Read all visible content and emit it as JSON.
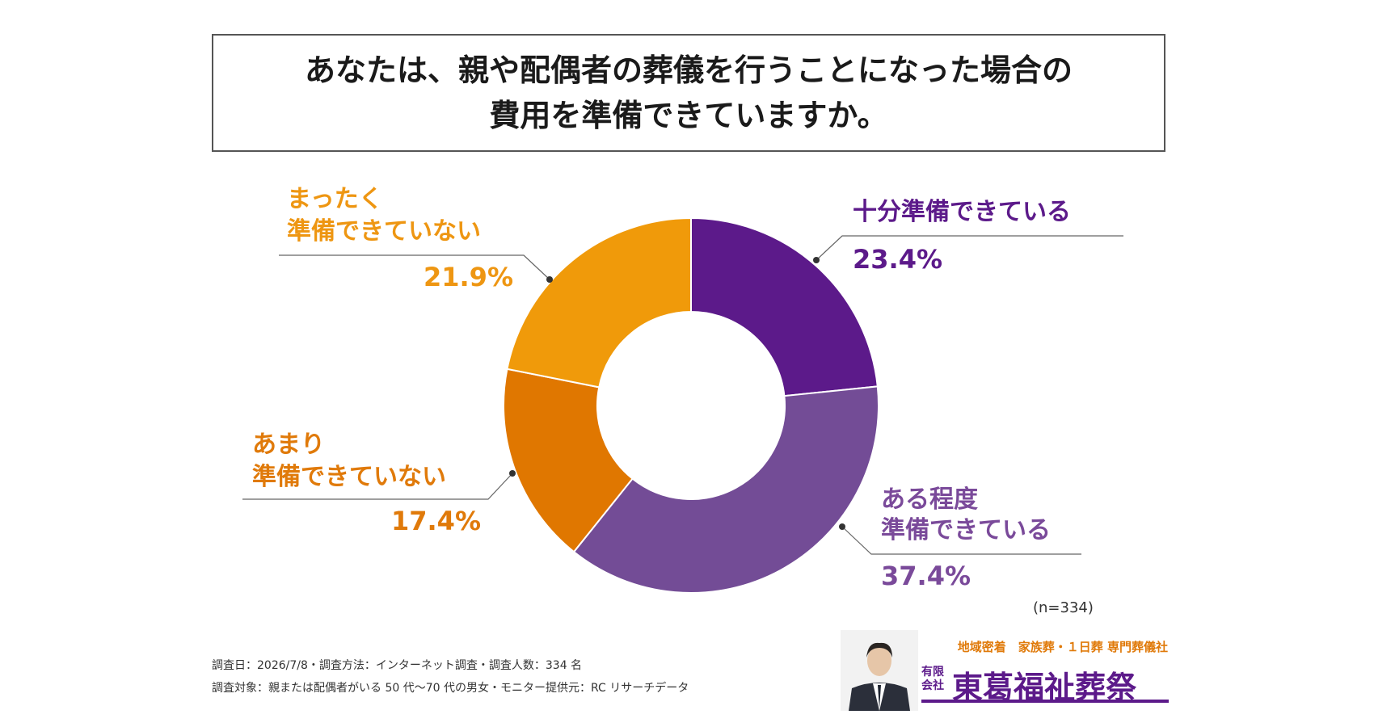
{
  "title": {
    "line1": "あなたは、親や配偶者の葬儀を行うことになった場合の",
    "line2": "費用を準備できていますか。"
  },
  "labels": {
    "enough_line1": "十分準備できている",
    "somewhat_line1": "ある程度",
    "somewhat_line2": "準備できている",
    "little_line1": "あまり",
    "little_line2": "準備できていない",
    "none_line1": "まったく",
    "none_line2": "準備できていない"
  },
  "sample_size": "(n=334)",
  "notes": {
    "line1": "調査日：2026/7/8・調査方法：インターネット調査・調査人数：334 名",
    "line2": "調査対象：親または配偶者がいる 50 代〜70 代の男女・モニター提供元：RC リサーチデータ"
  },
  "brand": {
    "tagline": "地域密着　家族葬・１日葬 専門葬儀社",
    "company_type": "有限会社",
    "company_name": "東葛福祉葬祭"
  },
  "colors": {
    "purple_dark": "#5c1a8a",
    "purple_mid": "#734c96",
    "orange_dark": "#e07700",
    "orange_light": "#f09a0a"
  },
  "chart_data": {
    "type": "pie",
    "style": "donut",
    "categories": [
      "十分準備できている",
      "ある程度準備できている",
      "あまり準備できていない",
      "まったく準備できていない"
    ],
    "values": [
      23.4,
      37.4,
      17.4,
      21.9
    ],
    "value_labels": [
      "23.4%",
      "37.4%",
      "17.4%",
      "21.9%"
    ],
    "unit": "%",
    "colors": [
      "#5c1a8a",
      "#734c96",
      "#e07700",
      "#f09a0a"
    ],
    "start": "12 o'clock, clockwise"
  }
}
